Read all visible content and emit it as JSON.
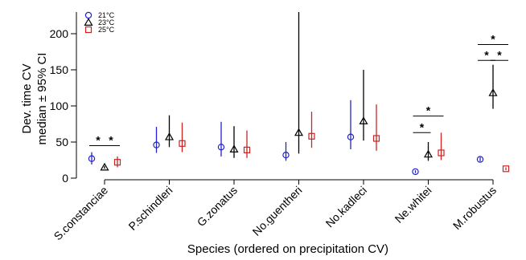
{
  "chart_data": {
    "type": "scatter",
    "ylabel_line1": "Dev. time CV",
    "ylabel_line2": "median ± 95% CI",
    "xlabel": "Species (ordered on precipitation CV)",
    "ylim": [
      0,
      230
    ],
    "yticks": [
      0,
      50,
      100,
      150,
      200
    ],
    "categories": [
      "S.constanciae",
      "P.schindleri",
      "G.zonatus",
      "No.guentheri",
      "No.kadleci",
      "Ne.whitei",
      "M.robustus"
    ],
    "legend_position": "top-left",
    "series": [
      {
        "name": "21°C",
        "color": "#2222cc",
        "marker": "circle",
        "values": [
          27,
          46,
          43,
          32,
          57,
          9,
          26
        ],
        "lower": [
          19,
          35,
          30,
          24,
          40,
          7,
          23
        ],
        "upper": [
          36,
          71,
          78,
          50,
          108,
          11,
          29
        ]
      },
      {
        "name": "23°C",
        "color": "#000000",
        "marker": "triangle",
        "values": [
          15,
          57,
          40,
          63,
          79,
          33,
          118
        ],
        "lower": [
          13,
          43,
          28,
          34,
          52,
          24,
          96
        ],
        "upper": [
          17,
          87,
          72,
          230,
          150,
          50,
          157
        ]
      },
      {
        "name": "25°C",
        "color": "#cc2222",
        "marker": "square",
        "values": [
          22,
          48,
          39,
          58,
          55,
          35,
          13
        ],
        "lower": [
          15,
          36,
          28,
          42,
          38,
          25,
          11
        ],
        "upper": [
          30,
          77,
          66,
          92,
          102,
          63,
          15
        ]
      }
    ],
    "significance": [
      {
        "category": "S.constanciae",
        "from": 0,
        "to": 1,
        "y": 45,
        "label": "*"
      },
      {
        "category": "S.constanciae",
        "from": 1,
        "to": 2,
        "y": 45,
        "label": "*"
      },
      {
        "category": "Ne.whitei",
        "from": 0,
        "to": 1,
        "y": 63,
        "label": "*"
      },
      {
        "category": "Ne.whitei",
        "from": 0,
        "to": 2,
        "y": 86,
        "label": "*"
      },
      {
        "category": "M.robustus",
        "from": 0,
        "to": 1,
        "y": 163,
        "label": "*"
      },
      {
        "category": "M.robustus",
        "from": 1,
        "to": 2,
        "y": 163,
        "label": "*"
      },
      {
        "category": "M.robustus",
        "from": 0,
        "to": 2,
        "y": 185,
        "label": "*"
      }
    ]
  }
}
